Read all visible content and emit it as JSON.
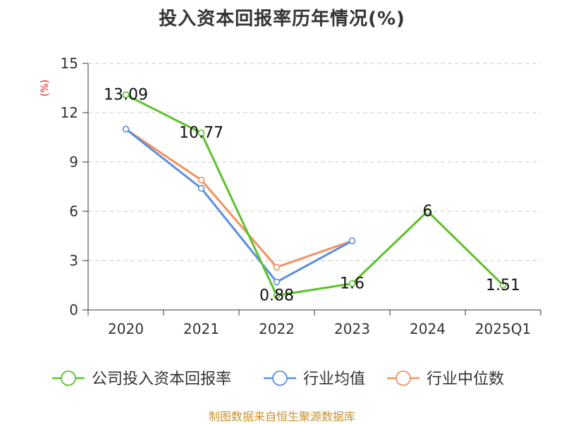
{
  "chart_data": {
    "type": "line",
    "title": "投入资本回报率历年情况(%)",
    "ylabel": "(%)",
    "categories": [
      "2020",
      "2021",
      "2022",
      "2023",
      "2024",
      "2025Q1"
    ],
    "ylim": [
      0,
      15
    ],
    "yticks": [
      0,
      3,
      6,
      9,
      12,
      15
    ],
    "grid": true,
    "legend_position": "bottom",
    "series": [
      {
        "name": "公司投入资本回报率",
        "color": "#5cc12b",
        "values": [
          13.09,
          10.77,
          0.88,
          1.6,
          6,
          1.51
        ],
        "labels": [
          "13.09",
          "10.77",
          "0.88",
          "1.6",
          "6",
          "1.51"
        ]
      },
      {
        "name": "行业均值",
        "color": "#5b8ee0",
        "values": [
          11.0,
          7.4,
          1.7,
          4.2,
          null,
          null
        ]
      },
      {
        "name": "行业中位数",
        "color": "#f4915e",
        "values": [
          11.0,
          7.9,
          2.6,
          4.2,
          null,
          null
        ]
      }
    ]
  },
  "source_note": "制图数据来自恒生聚源数据库"
}
